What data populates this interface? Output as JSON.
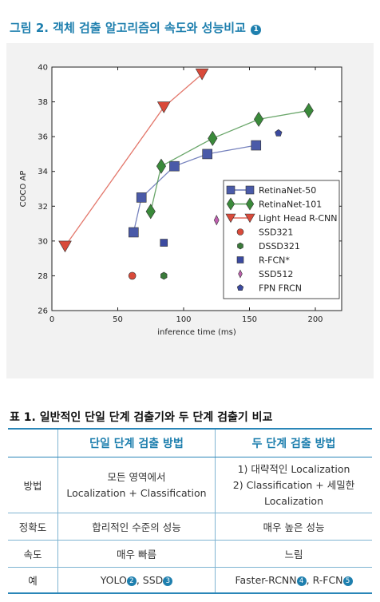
{
  "figure": {
    "title": "그림 2. 객체 검출 알고리즘의 속도와 성능비교",
    "badge": "1"
  },
  "chart_data": {
    "type": "line",
    "xlabel": "inference time (ms)",
    "ylabel": "COCO AP",
    "xlim": [
      0,
      220
    ],
    "ylim": [
      26,
      40
    ],
    "xticks": [
      0,
      50,
      100,
      150,
      200
    ],
    "yticks": [
      26,
      28,
      30,
      32,
      34,
      36,
      38,
      40
    ],
    "grid": false,
    "legend_position": "lower-right",
    "series": [
      {
        "name": "RetinaNet-50",
        "kind": "line",
        "color": "#4a5aa8",
        "marker": "square",
        "x": [
          62,
          68,
          93,
          118,
          155
        ],
        "y": [
          30.5,
          32.5,
          34.3,
          35.0,
          35.5
        ]
      },
      {
        "name": "RetinaNet-101",
        "kind": "line",
        "color": "#3a8a3a",
        "marker": "diamond",
        "x": [
          75,
          83,
          122,
          157,
          195
        ],
        "y": [
          31.7,
          34.3,
          35.9,
          37.0,
          37.5
        ]
      },
      {
        "name": "Light Head R-CNN",
        "kind": "line",
        "color": "#d94a3a",
        "marker": "triangle-down",
        "x": [
          10,
          85,
          114
        ],
        "y": [
          29.7,
          37.7,
          39.6
        ]
      },
      {
        "name": "SSD321",
        "kind": "point",
        "color": "#d94a3a",
        "marker": "circle",
        "x": [
          61
        ],
        "y": [
          28.0
        ]
      },
      {
        "name": "DSSD321",
        "kind": "point",
        "color": "#3a7a3a",
        "marker": "hexagon",
        "x": [
          85
        ],
        "y": [
          28.0
        ]
      },
      {
        "name": "R-FCN*",
        "kind": "point",
        "color": "#3b4aa0",
        "marker": "square",
        "x": [
          85
        ],
        "y": [
          29.9
        ]
      },
      {
        "name": "SSD512",
        "kind": "point",
        "color": "#c060b0",
        "marker": "thin-diamond",
        "x": [
          125
        ],
        "y": [
          31.2
        ]
      },
      {
        "name": "FPN FRCN",
        "kind": "point",
        "color": "#3b4aa0",
        "marker": "pentagon",
        "x": [
          172
        ],
        "y": [
          36.2
        ]
      }
    ]
  },
  "table": {
    "title": "표 1. 일반적인 단일 단계 검출기와 두 단계 검출기 비교",
    "headers": [
      "",
      "단일 단계 검출 방법",
      "두 단계 검출 방법"
    ],
    "rows": [
      {
        "label": "방법",
        "one_stage": [
          "모든 영역에서",
          "Localization + Classification"
        ],
        "two_stage": [
          "1) 대략적인 Localization",
          "2) Classification + 세밀한",
          "Localization"
        ]
      },
      {
        "label": "정확도",
        "one_stage": [
          "합리적인 수준의 성능"
        ],
        "two_stage": [
          "매우 높은 성능"
        ]
      },
      {
        "label": "속도",
        "one_stage": [
          "매우 빠름"
        ],
        "two_stage": [
          "느림"
        ]
      },
      {
        "label": "예",
        "one_stage_parts": [
          "YOLO",
          "2",
          ", SSD",
          "3"
        ],
        "two_stage_parts": [
          "Faster-RCNN",
          "4",
          ", R-FCN",
          "5"
        ]
      }
    ]
  }
}
